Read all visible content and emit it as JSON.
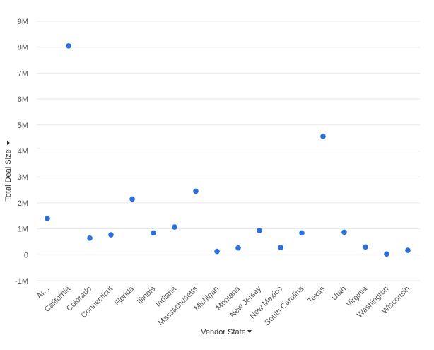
{
  "chart_data": {
    "type": "scatter",
    "categories": [
      "Ar...",
      "California",
      "Colorado",
      "Connecticut",
      "Florida",
      "Illinois",
      "Indiana",
      "Massachusetts",
      "Michigan",
      "Montana",
      "New Jersey",
      "New Mexico",
      "South Carolina",
      "Texas",
      "Utah",
      "Virginia",
      "Washington",
      "Wisconsin"
    ],
    "series": [
      {
        "values": [
          1400000,
          8050000,
          640000,
          770000,
          2150000,
          840000,
          1070000,
          2450000,
          130000,
          260000,
          930000,
          280000,
          840000,
          4560000,
          870000,
          300000,
          30000,
          170000
        ]
      }
    ],
    "xlabel": "Vendor State",
    "ylabel": "Total Deal Size",
    "ylim": [
      -1000000,
      9000000
    ],
    "yticks": [
      {
        "value": -1000000,
        "label": "-1M"
      },
      {
        "value": 0,
        "label": "0"
      },
      {
        "value": 1000000,
        "label": "1M"
      },
      {
        "value": 2000000,
        "label": "2M"
      },
      {
        "value": 3000000,
        "label": "3M"
      },
      {
        "value": 4000000,
        "label": "4M"
      },
      {
        "value": 5000000,
        "label": "5M"
      },
      {
        "value": 6000000,
        "label": "6M"
      },
      {
        "value": 7000000,
        "label": "7M"
      },
      {
        "value": 8000000,
        "label": "8M"
      },
      {
        "value": 9000000,
        "label": "9M"
      }
    ],
    "grid": true,
    "legend": "none",
    "colors": {
      "point": "#2a6fdb",
      "grid": "#e9e9e9",
      "tick_text": "#555555",
      "axis_title": "#333333"
    },
    "axis_title_dropdown_icon": "caret-down-icon"
  }
}
